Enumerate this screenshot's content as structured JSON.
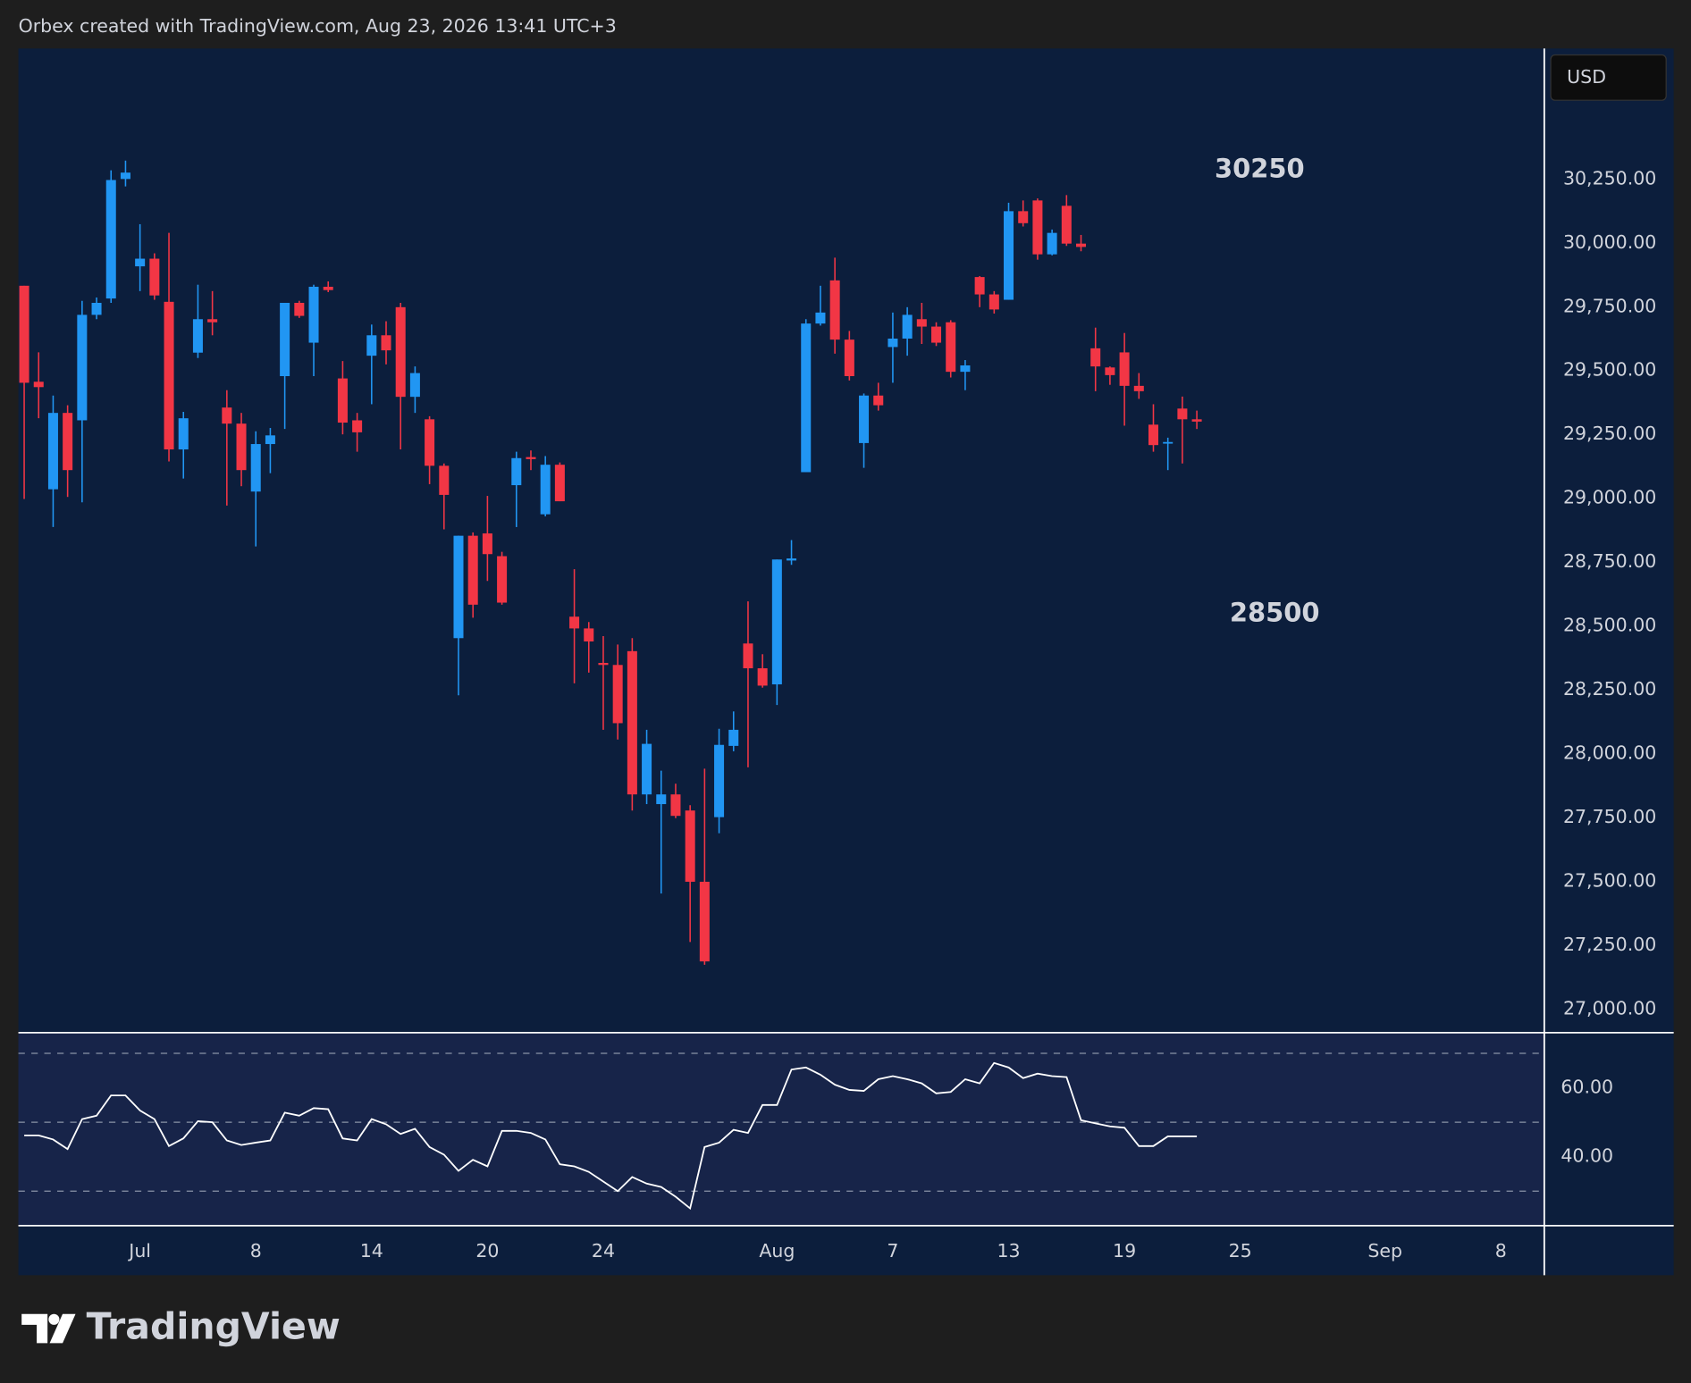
{
  "header": "Orbex created with TradingView.com, Aug 23, 2026 13:41 UTC+3",
  "currency": "USD",
  "logo": "TradingView",
  "annotations": [
    "30250",
    "28500"
  ],
  "chart_data": [
    {
      "type": "candlestick",
      "up_color": "#2196f3",
      "down_color": "#f23645",
      "open": [
        29832,
        29456,
        29035,
        29334,
        29305,
        29718,
        29782,
        30250,
        29908,
        29938,
        29769,
        29191,
        29570,
        29701,
        29355,
        29292,
        29026,
        29212,
        29478,
        29765,
        29609,
        29828,
        29469,
        29305,
        29558,
        29638,
        29748,
        29397,
        29309,
        29127,
        28452,
        28853,
        28862,
        28773,
        29051,
        29161,
        28937,
        29131,
        28536,
        28490,
        28355,
        28347,
        28401,
        27840,
        27802,
        27840,
        27777,
        27498,
        27751,
        28030,
        28431,
        28334,
        28271,
        28756,
        29102,
        29684,
        29853,
        29621,
        29216,
        29402,
        29592,
        29625,
        29701,
        29672,
        29689,
        29495,
        29866,
        29798,
        29777,
        30124,
        30166,
        29955,
        30145,
        29997,
        29587,
        29512,
        29571,
        29440,
        29288,
        29216,
        29351,
        29309
      ],
      "high": [
        29832,
        29571,
        29402,
        29364,
        29773,
        29786,
        30284,
        30322,
        30073,
        29959,
        30039,
        29338,
        29836,
        29811,
        29423,
        29334,
        29262,
        29275,
        29765,
        29773,
        29836,
        29849,
        29537,
        29334,
        29680,
        29693,
        29765,
        29516,
        29321,
        29136,
        28853,
        28866,
        29009,
        28790,
        29182,
        29187,
        29165,
        29140,
        28722,
        28515,
        28460,
        28427,
        28452,
        28093,
        27933,
        27882,
        27798,
        27941,
        28097,
        28165,
        28596,
        28389,
        28760,
        28836,
        29701,
        29832,
        29942,
        29655,
        29410,
        29452,
        29727,
        29748,
        29765,
        29689,
        29697,
        29541,
        29870,
        29811,
        30157,
        30166,
        30174,
        30052,
        30187,
        30031,
        29668,
        29516,
        29647,
        29490,
        29368,
        29237,
        29398,
        29343
      ],
      "low": [
        28997,
        29313,
        28887,
        29005,
        28984,
        29701,
        29765,
        30221,
        29811,
        29777,
        29144,
        29077,
        29549,
        29638,
        28971,
        29047,
        28811,
        29098,
        29271,
        29706,
        29478,
        29807,
        29250,
        29182,
        29368,
        29524,
        29191,
        29334,
        29055,
        28878,
        28228,
        28532,
        28676,
        28583,
        28887,
        29110,
        28929,
        28988,
        28275,
        28317,
        28093,
        28055,
        27777,
        27802,
        27452,
        27747,
        27262,
        27173,
        27688,
        28009,
        27946,
        28258,
        28190,
        28739,
        29102,
        29676,
        29566,
        29461,
        29119,
        29343,
        29452,
        29558,
        29604,
        29596,
        29473,
        29423,
        29748,
        29723,
        29777,
        30064,
        29934,
        29951,
        29988,
        29967,
        29419,
        29444,
        29284,
        29389,
        29182,
        29110,
        29136,
        29271
      ],
      "close": [
        29452,
        29435,
        29334,
        29110,
        29718,
        29765,
        30246,
        30275,
        29938,
        29794,
        29191,
        29313,
        29701,
        29689,
        29292,
        29110,
        29212,
        29246,
        29765,
        29714,
        29828,
        29815,
        29296,
        29258,
        29638,
        29579,
        29397,
        29490,
        29127,
        29013,
        28853,
        28583,
        28781,
        28591,
        29157,
        29153,
        29131,
        28988,
        28490,
        28439,
        28347,
        28119,
        27840,
        28038,
        27840,
        27756,
        27498,
        27186,
        28034,
        28093,
        28334,
        28266,
        28760,
        28764,
        29684,
        29727,
        29621,
        29478,
        29402,
        29364,
        29625,
        29718,
        29672,
        29609,
        29495,
        29520,
        29798,
        29739,
        30124,
        30077,
        29955,
        30039,
        29997,
        29984,
        29516,
        29482,
        29440,
        29419,
        29208,
        29220,
        29309,
        29300
      ],
      "ylim": [
        26907,
        30761
      ],
      "yticks": [
        {
          "value": 27000,
          "label": "27,000.00"
        },
        {
          "value": 27250,
          "label": "27,250.00"
        },
        {
          "value": 27500,
          "label": "27,500.00"
        },
        {
          "value": 27750,
          "label": "27,750.00"
        },
        {
          "value": 28000,
          "label": "28,000.00"
        },
        {
          "value": 28250,
          "label": "28,250.00"
        },
        {
          "value": 28500,
          "label": "28,500.00"
        },
        {
          "value": 28750,
          "label": "28,750.00"
        },
        {
          "value": 29000,
          "label": "29,000.00"
        },
        {
          "value": 29250,
          "label": "29,250.00"
        },
        {
          "value": 29500,
          "label": "29,500.00"
        },
        {
          "value": 29750,
          "label": "29,750.00"
        },
        {
          "value": 30000,
          "label": "30,000.00"
        },
        {
          "value": 30250,
          "label": "30,250.00"
        }
      ],
      "xlim": [
        -0.4,
        105
      ],
      "xticks": [
        {
          "value": 8,
          "label": "Jul"
        },
        {
          "value": 16,
          "label": "8"
        },
        {
          "value": 24,
          "label": "14"
        },
        {
          "value": 32,
          "label": "20"
        },
        {
          "value": 40,
          "label": "24"
        },
        {
          "value": 52,
          "label": "Aug"
        },
        {
          "value": 60,
          "label": "7"
        },
        {
          "value": 68,
          "label": "13"
        },
        {
          "value": 76,
          "label": "19"
        },
        {
          "value": 84,
          "label": "25"
        },
        {
          "value": 94,
          "label": "Sep"
        },
        {
          "value": 102,
          "label": "8"
        }
      ]
    },
    {
      "type": "line",
      "color": "#ffffff",
      "values": [
        46.2,
        46.2,
        45,
        42.2,
        50.9,
        51.9,
        57.8,
        57.8,
        53.4,
        50.9,
        43.1,
        45.3,
        50.3,
        50,
        44.7,
        43.4,
        44.1,
        44.7,
        52.8,
        51.9,
        54.1,
        53.8,
        45.3,
        44.7,
        50.9,
        49.4,
        46.6,
        48.1,
        42.8,
        40.6,
        35.9,
        39.1,
        37.2,
        47.5,
        47.5,
        46.9,
        45,
        37.8,
        37.2,
        35.6,
        32.8,
        30,
        34.1,
        32.2,
        31.2,
        28.4,
        25,
        42.8,
        44.1,
        47.8,
        46.9,
        55,
        55,
        65.3,
        65.9,
        63.8,
        60.9,
        59.4,
        59.1,
        62.5,
        63.4,
        62.5,
        61.3,
        58.4,
        58.8,
        62.5,
        61.3,
        67.2,
        65.9,
        62.8,
        64.1,
        63.4,
        63.1,
        50.6,
        49.7,
        48.8,
        48.4,
        43.1,
        43.1,
        45.9,
        45.9,
        45.9
      ],
      "ylim": [
        20,
        76
      ],
      "yticks": [
        {
          "value": 40,
          "label": "40.00"
        },
        {
          "value": 60,
          "label": "60.00"
        }
      ],
      "hlines": [
        30,
        50,
        70
      ]
    }
  ]
}
